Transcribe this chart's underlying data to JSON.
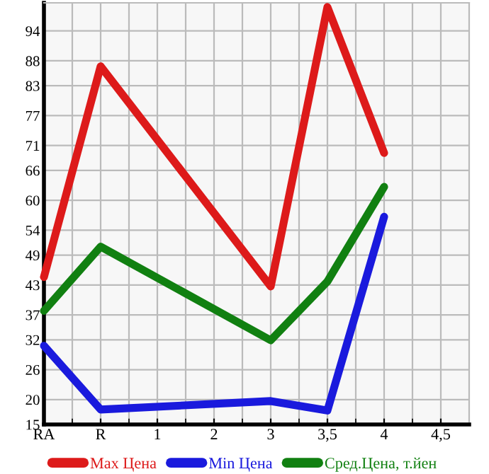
{
  "chart_data": {
    "type": "line",
    "categories": [
      "RA",
      "R",
      "1",
      "2",
      "3",
      "3,5",
      "4",
      "4,5"
    ],
    "series": [
      {
        "name": "Max Цена",
        "color": "#dd1a1a",
        "values": [
          44.6,
          86.9,
          null,
          null,
          42.7,
          98.8,
          69.5,
          null
        ]
      },
      {
        "name": "Min Цена",
        "color": "#1a1add",
        "values": [
          30.8,
          18.0,
          null,
          null,
          19.7,
          17.8,
          56.7,
          null
        ]
      },
      {
        "name": "Сред.Цена, т.йен",
        "color": "#118011",
        "values": [
          37.8,
          50.7,
          null,
          null,
          31.9,
          43.7,
          62.7,
          null
        ]
      }
    ],
    "ylim": [
      15,
      99.64
    ],
    "yticks": [
      15,
      20,
      26,
      32,
      37,
      43,
      49,
      54,
      60,
      66,
      71,
      77,
      83,
      88,
      94
    ],
    "grid": true,
    "legend": "bottom",
    "marker": "none",
    "line_style": "solid"
  }
}
